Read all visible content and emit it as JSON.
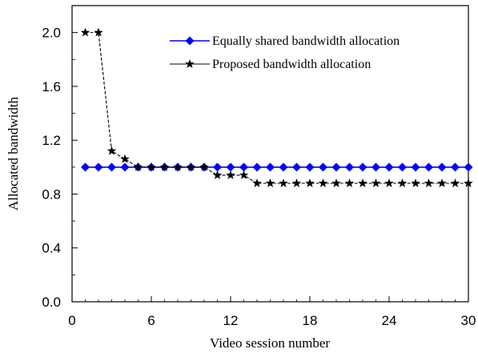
{
  "chart_data": {
    "type": "line",
    "title": "",
    "xlabel": "Video session number",
    "ylabel": "Allocated bandwidth",
    "xlim": [
      0,
      30
    ],
    "ylim": [
      0,
      2.2
    ],
    "x_ticks": [
      0,
      6,
      12,
      18,
      24,
      30
    ],
    "y_ticks": [
      0.0,
      0.4,
      0.8,
      1.2,
      1.6,
      2.0
    ],
    "x_tick_labels": [
      "0",
      "6",
      "12",
      "18",
      "24",
      "30"
    ],
    "y_tick_labels": [
      "0.0",
      "0.4",
      "0.8",
      "1.2",
      "1.6",
      "2.0"
    ],
    "grid": false,
    "legend_position": "top-right",
    "x": [
      1,
      2,
      3,
      4,
      5,
      6,
      7,
      8,
      9,
      10,
      11,
      12,
      13,
      14,
      15,
      16,
      17,
      18,
      19,
      20,
      21,
      22,
      23,
      24,
      25,
      26,
      27,
      28,
      29,
      30
    ],
    "series": [
      {
        "name": "Equally shared bandwidth allocation",
        "color": "#0000ff",
        "marker": "diamond",
        "values": [
          1.0,
          1.0,
          1.0,
          1.0,
          1.0,
          1.0,
          1.0,
          1.0,
          1.0,
          1.0,
          1.0,
          1.0,
          1.0,
          1.0,
          1.0,
          1.0,
          1.0,
          1.0,
          1.0,
          1.0,
          1.0,
          1.0,
          1.0,
          1.0,
          1.0,
          1.0,
          1.0,
          1.0,
          1.0,
          1.0
        ]
      },
      {
        "name": "Proposed bandwidth allocation",
        "color": "#000000",
        "marker": "star",
        "line_style": "dashed",
        "values": [
          2.0,
          2.0,
          1.12,
          1.06,
          1.0,
          1.0,
          1.0,
          1.0,
          1.0,
          1.0,
          0.94,
          0.94,
          0.94,
          0.88,
          0.88,
          0.88,
          0.88,
          0.88,
          0.88,
          0.88,
          0.88,
          0.88,
          0.88,
          0.88,
          0.88,
          0.88,
          0.88,
          0.88,
          0.88,
          0.88
        ]
      }
    ]
  }
}
